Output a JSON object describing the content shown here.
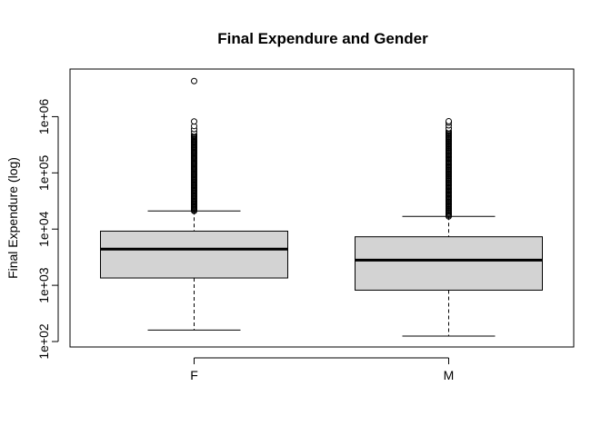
{
  "chart_data": {
    "type": "boxplot",
    "title": "Final Expendure and Gender",
    "xlabel": "",
    "ylabel": "Final Expendure (log)",
    "y_scale": "log10",
    "ylim": [
      100,
      4500000
    ],
    "y_ticks": [
      {
        "value": 100,
        "label": "1e+02"
      },
      {
        "value": 1000,
        "label": "1e+03"
      },
      {
        "value": 10000,
        "label": "1e+04"
      },
      {
        "value": 100000,
        "label": "1e+05"
      },
      {
        "value": 1000000,
        "label": "1e+06"
      }
    ],
    "categories": [
      "F",
      "M"
    ],
    "box_color": "#d3d3d3",
    "grid": false,
    "boxes": [
      {
        "category": "F",
        "whisker_low": 160,
        "q1": 1350,
        "median": 4400,
        "q3": 9200,
        "whisker_high": 21000,
        "outliers_band": [
          21000,
          480000
        ],
        "outliers": [
          540000,
          600000,
          680000,
          820000,
          4300000
        ]
      },
      {
        "category": "M",
        "whisker_low": 125,
        "q1": 820,
        "median": 2800,
        "q3": 7300,
        "whisker_high": 16800,
        "outliers_band": [
          16800,
          560000
        ],
        "outliers": [
          620000,
          700000,
          780000,
          830000
        ]
      }
    ]
  }
}
